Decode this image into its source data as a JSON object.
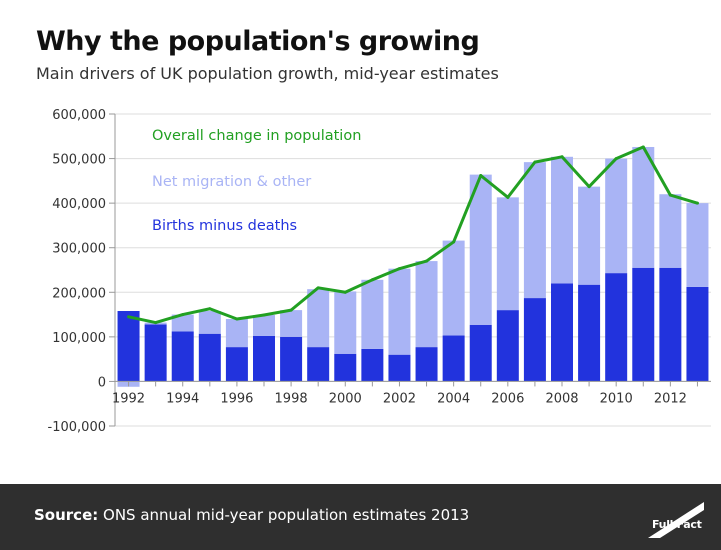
{
  "title": "Why the population's growing",
  "subtitle": "Main drivers of UK population growth, mid-year estimates",
  "footer": {
    "source_label": "Source:",
    "source_text": " ONS annual mid-year population estimates 2013",
    "logo_text": "Full Fact"
  },
  "colors": {
    "births_minus_deaths": "#2233dd",
    "net_migration": "#a9b4f5",
    "overall_change": "#22a022",
    "footer_bg": "#2f2f2f"
  },
  "chart_data": {
    "type": "bar",
    "x": [
      1992,
      1993,
      1994,
      1995,
      1996,
      1997,
      1998,
      1999,
      2000,
      2001,
      2002,
      2003,
      2004,
      2005,
      2006,
      2007,
      2008,
      2009,
      2010,
      2011,
      2012,
      2013
    ],
    "x_tick_labels": [
      "1992",
      "1994",
      "1996",
      "1998",
      "2000",
      "2002",
      "2004",
      "2006",
      "2008",
      "2010",
      "2012"
    ],
    "y_tick_labels": [
      "600,000",
      "500,000",
      "400,000",
      "300,000",
      "200,000",
      "100,000",
      "0",
      "-100,000"
    ],
    "ylim": [
      -100000,
      600000
    ],
    "grid": true,
    "stacked": true,
    "series": [
      {
        "name": "Births minus deaths",
        "kind": "bar",
        "values": [
          158000,
          128000,
          112000,
          107000,
          77000,
          102000,
          100000,
          77000,
          62000,
          73000,
          60000,
          77000,
          103000,
          127000,
          160000,
          187000,
          220000,
          217000,
          243000,
          255000,
          255000,
          212000
        ]
      },
      {
        "name": "Net migration & other",
        "kind": "bar",
        "values": [
          -12000,
          4000,
          38000,
          51000,
          63000,
          47000,
          60000,
          130000,
          140000,
          155000,
          193000,
          193000,
          213000,
          337000,
          253000,
          305000,
          284000,
          220000,
          257000,
          271000,
          165000,
          188000
        ]
      },
      {
        "name": "Overall change in population",
        "kind": "line",
        "values": [
          145000,
          132000,
          150000,
          163000,
          140000,
          149000,
          160000,
          210000,
          200000,
          228000,
          253000,
          270000,
          313000,
          462000,
          413000,
          492000,
          504000,
          437000,
          500000,
          526000,
          418000,
          400000
        ]
      }
    ]
  }
}
